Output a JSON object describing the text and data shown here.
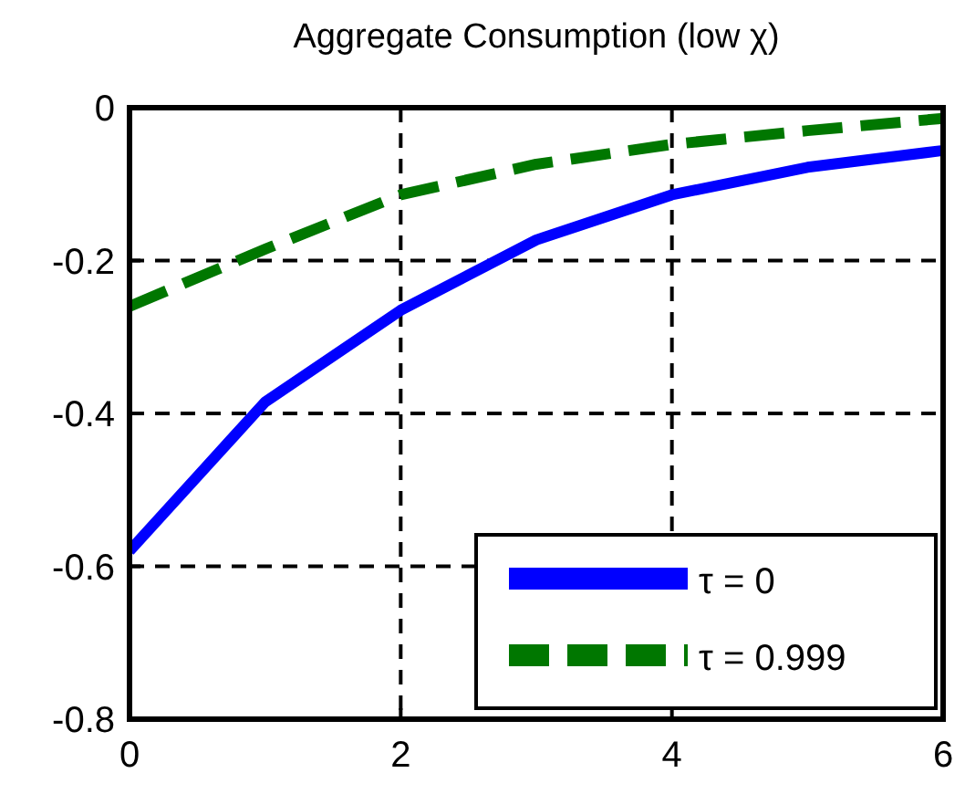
{
  "chart_data": {
    "type": "line",
    "title": "Aggregate Consumption (low χ)",
    "x": [
      0,
      1,
      2,
      3,
      4,
      5,
      6
    ],
    "series": [
      {
        "name": "τ = 0",
        "color": "#0000ff",
        "line_style": "solid",
        "values": [
          -0.58,
          -0.385,
          -0.265,
          -0.173,
          -0.114,
          -0.078,
          -0.056
        ]
      },
      {
        "name": "τ = 0.999",
        "color": "#007700",
        "line_style": "dashed",
        "values": [
          -0.26,
          -0.185,
          -0.114,
          -0.074,
          -0.048,
          -0.03,
          -0.014
        ]
      }
    ],
    "xlim": [
      0,
      6
    ],
    "xticks": [
      0,
      2,
      4,
      6
    ],
    "ylim": [
      -0.8,
      0
    ],
    "yticks": [
      -0.8,
      -0.6,
      -0.4,
      -0.2,
      0
    ],
    "grid": true,
    "legend": "bottom right",
    "marker": "none"
  }
}
